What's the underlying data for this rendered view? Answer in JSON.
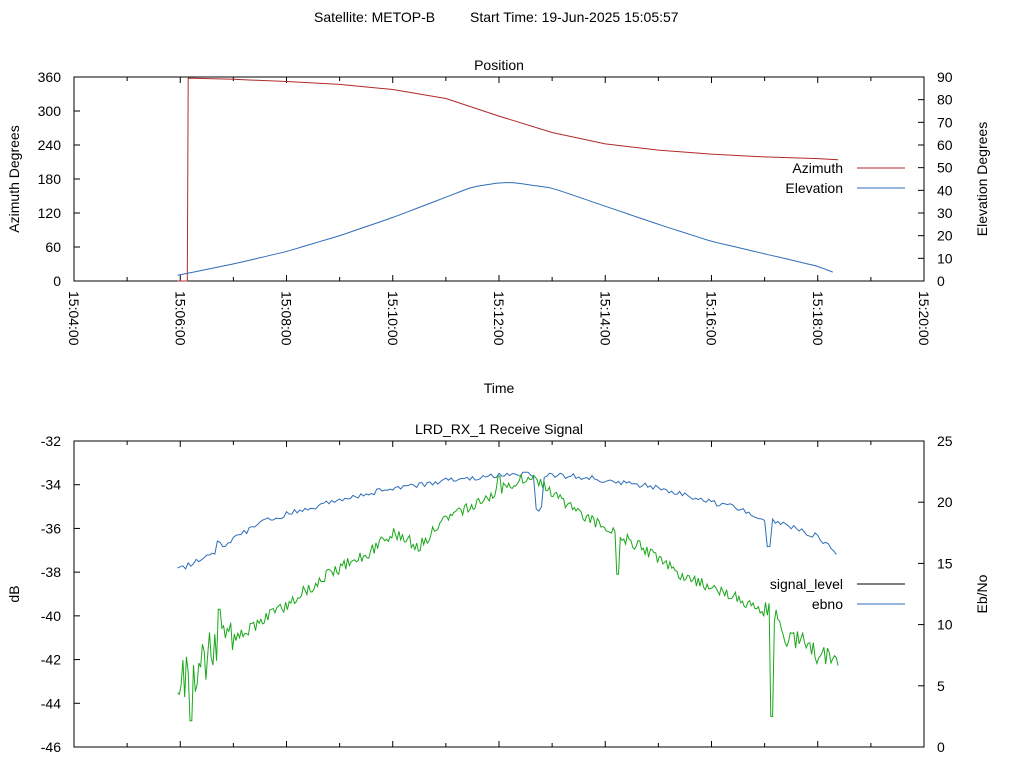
{
  "header": {
    "satellite": "Satellite: METOP-B",
    "start_time": "Start Time: 19-Jun-2025 15:05:57"
  },
  "colors": {
    "azimuth": "#b02a2a",
    "elevation": "#2e6db8",
    "signal_level": "#000000",
    "ebno_legend": "#2e6db8",
    "signal_trace": "#1aa81a",
    "ebno_trace": "#2e6db8",
    "axis": "#000000"
  },
  "chart_data": [
    {
      "type": "line",
      "title": "Position",
      "xlabel": "Time",
      "ylabel": "Azimuth Degrees",
      "y2label": "Elevation Degrees",
      "xlim": [
        "15:04:00",
        "15:20:00"
      ],
      "x_ticks": [
        "15:04:00",
        "15:06:00",
        "15:08:00",
        "15:10:00",
        "15:12:00",
        "15:14:00",
        "15:16:00",
        "15:18:00",
        "15:20:00"
      ],
      "ylim": [
        0,
        360
      ],
      "y_ticks": [
        "0",
        "60",
        "120",
        "180",
        "240",
        "300",
        "360"
      ],
      "y2lim": [
        0,
        90
      ],
      "y2_ticks": [
        "0",
        "10",
        "20",
        "30",
        "40",
        "50",
        "60",
        "70",
        "80",
        "90"
      ],
      "grid": false,
      "legend_position": "right",
      "series": [
        {
          "name": "Azimuth",
          "axis": "left",
          "x": [
            "15:05:57",
            "15:06:08",
            "15:06:09",
            "15:07:00",
            "15:08:00",
            "15:09:00",
            "15:10:00",
            "15:11:00",
            "15:12:00",
            "15:13:00",
            "15:14:00",
            "15:15:00",
            "15:16:00",
            "15:17:00",
            "15:18:00",
            "15:18:23"
          ],
          "values": [
            0,
            0,
            358,
            356,
            352,
            347,
            338,
            322,
            291,
            262,
            242,
            231,
            224,
            219,
            216,
            214
          ]
        },
        {
          "name": "Elevation",
          "axis": "right",
          "x": [
            "15:05:57",
            "15:07:00",
            "15:08:00",
            "15:09:00",
            "15:10:00",
            "15:11:00",
            "15:11:30",
            "15:12:00",
            "15:12:15",
            "15:13:00",
            "15:14:00",
            "15:15:00",
            "15:16:00",
            "15:17:00",
            "15:18:00",
            "15:18:23"
          ],
          "values": [
            2.5,
            7.5,
            13,
            20,
            28,
            37,
            41.5,
            43.3,
            43.5,
            41,
            33,
            25,
            17.5,
            12,
            6.5,
            3
          ]
        }
      ]
    },
    {
      "type": "line",
      "title": "LRD_RX_1 Receive Signal",
      "xlabel": "",
      "ylabel": "dB",
      "y2label": "Eb/No",
      "xlim": [
        "15:04:00",
        "15:20:00"
      ],
      "ylim": [
        -46,
        -32
      ],
      "y_ticks": [
        "-46",
        "-44",
        "-42",
        "-40",
        "-38",
        "-36",
        "-34",
        "-32"
      ],
      "y2lim": [
        0,
        25
      ],
      "y2_ticks": [
        "0",
        "5",
        "10",
        "15",
        "20",
        "25"
      ],
      "grid": false,
      "legend_position": "right",
      "legend": [
        "signal_level",
        "ebno"
      ],
      "series": [
        {
          "name": "signal_level",
          "axis": "left",
          "x": [
            "15:05:57",
            "15:06:15",
            "15:06:30",
            "15:07:00",
            "15:07:30",
            "15:08:00",
            "15:08:30",
            "15:09:00",
            "15:09:30",
            "15:10:00",
            "15:10:30",
            "15:11:00",
            "15:11:30",
            "15:12:00",
            "15:12:30",
            "15:13:00",
            "15:13:30",
            "15:14:00",
            "15:14:30",
            "15:15:00",
            "15:15:30",
            "15:16:00",
            "15:16:30",
            "15:17:00",
            "15:17:30",
            "15:18:00",
            "15:18:23"
          ],
          "values": [
            -42.8,
            -42.5,
            -41.8,
            -41,
            -40.3,
            -39.5,
            -38.6,
            -37.8,
            -37.2,
            -36.2,
            -36.8,
            -35.5,
            -34.9,
            -34.3,
            -33.6,
            -34.3,
            -35.3,
            -36,
            -36.6,
            -37.4,
            -38.2,
            -38.7,
            -39.2,
            -39.8,
            -41,
            -41.6,
            -42.2
          ]
        },
        {
          "name": "ebno",
          "axis": "right",
          "x": [
            "15:05:57",
            "15:06:30",
            "15:07:00",
            "15:07:30",
            "15:08:00",
            "15:08:30",
            "15:09:00",
            "15:09:30",
            "15:10:00",
            "15:10:30",
            "15:11:00",
            "15:11:30",
            "15:12:00",
            "15:12:30",
            "15:13:00",
            "15:13:30",
            "15:14:00",
            "15:14:30",
            "15:15:00",
            "15:15:30",
            "15:16:00",
            "15:16:30",
            "15:17:00",
            "15:17:30",
            "15:18:00",
            "15:18:23"
          ],
          "values": [
            14.5,
            15.5,
            17,
            18.3,
            19,
            19.6,
            20.2,
            20.7,
            21.1,
            21.4,
            21.8,
            22,
            22.2,
            22.3,
            22.2,
            22.1,
            21.8,
            21.5,
            21.2,
            20.6,
            20,
            19.5,
            18.6,
            18,
            17.2,
            15.8
          ]
        }
      ]
    }
  ]
}
